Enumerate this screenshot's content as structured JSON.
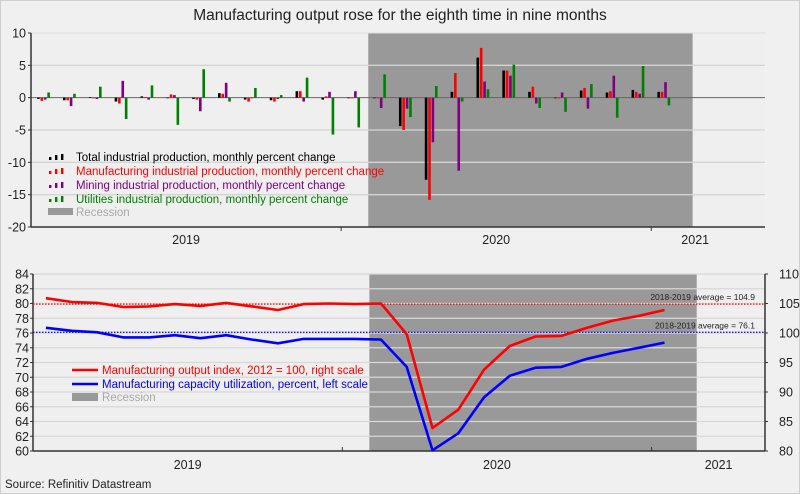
{
  "title": "Manufacturing output rose for the eighth time in nine months",
  "source": "Source: Refinitiv Datastream",
  "colors": {
    "total": "#000000",
    "manufacturing": "#ff0000",
    "mining": "#800080",
    "utilities": "#008000",
    "recession": "#999999",
    "capacity": "#0000ff",
    "plot_bg": "#efefef"
  },
  "chart_data": [
    {
      "type": "bar",
      "months": [
        "2019-01",
        "2019-02",
        "2019-03",
        "2019-04",
        "2019-05",
        "2019-06",
        "2019-07",
        "2019-08",
        "2019-09",
        "2019-10",
        "2019-11",
        "2019-12",
        "2020-01",
        "2020-02",
        "2020-03",
        "2020-04",
        "2020-05",
        "2020-06",
        "2020-07",
        "2020-08",
        "2020-09",
        "2020-10",
        "2020-11",
        "2020-12",
        "2021-01"
      ],
      "series": [
        {
          "name": "Total industrial production, monthly percent change",
          "key": "total",
          "values": [
            -0.2,
            -0.4,
            0.1,
            -0.6,
            0.2,
            0.0,
            -0.2,
            0.7,
            -0.3,
            -0.4,
            1.0,
            -0.3,
            -0.1,
            0.0,
            -4.4,
            -12.7,
            0.9,
            6.2,
            4.2,
            0.9,
            -0.1,
            1.1,
            0.8,
            1.2,
            0.9
          ]
        },
        {
          "name": "Manufacturing industrial production, monthly percent change",
          "key": "manufacturing",
          "values": [
            -0.5,
            -0.4,
            -0.1,
            -0.9,
            0.1,
            0.5,
            -0.3,
            0.6,
            -0.6,
            -0.6,
            1.0,
            0.2,
            -0.1,
            0.0,
            -5.0,
            -15.8,
            3.8,
            7.7,
            4.2,
            1.7,
            -0.1,
            1.5,
            1.0,
            0.9,
            0.9
          ]
        },
        {
          "name": "Mining industrial production, monthly percent change",
          "key": "mining",
          "values": [
            -0.3,
            -1.3,
            -0.2,
            2.6,
            -0.3,
            0.4,
            -2.1,
            2.3,
            0.0,
            -0.2,
            -0.6,
            0.9,
            1.0,
            -1.6,
            -1.7,
            -6.9,
            -11.3,
            2.5,
            3.4,
            -0.9,
            0.8,
            -1.7,
            3.4,
            0.6,
            2.4
          ]
        },
        {
          "name": "Utilities industrial production, monthly percent change",
          "key": "utilities",
          "values": [
            0.8,
            0.6,
            1.7,
            -3.3,
            1.9,
            -4.2,
            4.4,
            -0.6,
            1.5,
            0.4,
            3.1,
            -5.7,
            -4.6,
            3.6,
            -3.0,
            1.8,
            -0.6,
            1.3,
            5.1,
            -1.6,
            -2.2,
            2.1,
            -3.1,
            4.9,
            -1.2
          ]
        }
      ],
      "recession_label": "Recession",
      "recession": [
        "2020-02",
        "2021-02"
      ],
      "ylim": [
        -20,
        10
      ],
      "yticks": [
        10,
        5,
        0,
        -5,
        -10,
        -15,
        -20
      ],
      "xtick_labels": [
        {
          "label": "2019",
          "year": 2019
        },
        {
          "label": "2020",
          "year": 2020
        },
        {
          "label": "2021",
          "year": 2021
        }
      ],
      "xlim_months": [
        0,
        28.4
      ]
    },
    {
      "type": "line",
      "months": [
        "2019-01",
        "2019-02",
        "2019-03",
        "2019-04",
        "2019-05",
        "2019-06",
        "2019-07",
        "2019-08",
        "2019-09",
        "2019-10",
        "2019-11",
        "2019-12",
        "2020-01",
        "2020-02",
        "2020-03",
        "2020-04",
        "2020-05",
        "2020-06",
        "2020-07",
        "2020-08",
        "2020-09",
        "2020-10",
        "2020-11",
        "2020-12",
        "2021-01"
      ],
      "series": [
        {
          "name": "Manufacturing output index, 2012 = 100, right scale",
          "key": "manufacturing",
          "axis": "right",
          "values": [
            105.9,
            105.25,
            105.1,
            104.4,
            104.5,
            104.9,
            104.6,
            105.1,
            104.5,
            103.9,
            104.9,
            105.0,
            104.9,
            105.0,
            99.8,
            83.9,
            87.0,
            93.8,
            97.8,
            99.4,
            99.5,
            100.9,
            102.1,
            102.9,
            103.9
          ]
        },
        {
          "name": "Manufacturing capacity utilization, percent, left scale",
          "key": "capacity",
          "axis": "left",
          "values": [
            76.7,
            76.3,
            76.1,
            75.4,
            75.4,
            75.7,
            75.3,
            75.7,
            75.1,
            74.6,
            75.2,
            75.2,
            75.2,
            75.1,
            71.4,
            60.1,
            62.4,
            67.3,
            70.2,
            71.3,
            71.4,
            72.5,
            73.3,
            74.0,
            74.7
          ]
        }
      ],
      "averages": [
        {
          "label": "2018-2019 average = 104.9",
          "value": 104.9,
          "axis": "right",
          "key": "manufacturing"
        },
        {
          "label": "2018-2019 average = 76.1",
          "value": 76.1,
          "axis": "left",
          "key": "capacity"
        }
      ],
      "recession_label": "Recession",
      "recession": [
        "2020-02",
        "2021-02"
      ],
      "ylim_left": [
        60,
        84
      ],
      "ylim_right": [
        80,
        110
      ],
      "yticks_left": [
        84,
        82,
        80,
        78,
        76,
        74,
        72,
        70,
        68,
        66,
        64,
        62,
        60
      ],
      "yticks_right": [
        110,
        105,
        100,
        95,
        90,
        85,
        80
      ],
      "xtick_labels": [
        {
          "label": "2019",
          "year": 2019
        },
        {
          "label": "2020",
          "year": 2020
        },
        {
          "label": "2021",
          "year": 2021
        }
      ],
      "xlim_months": [
        0,
        28.4
      ]
    }
  ]
}
